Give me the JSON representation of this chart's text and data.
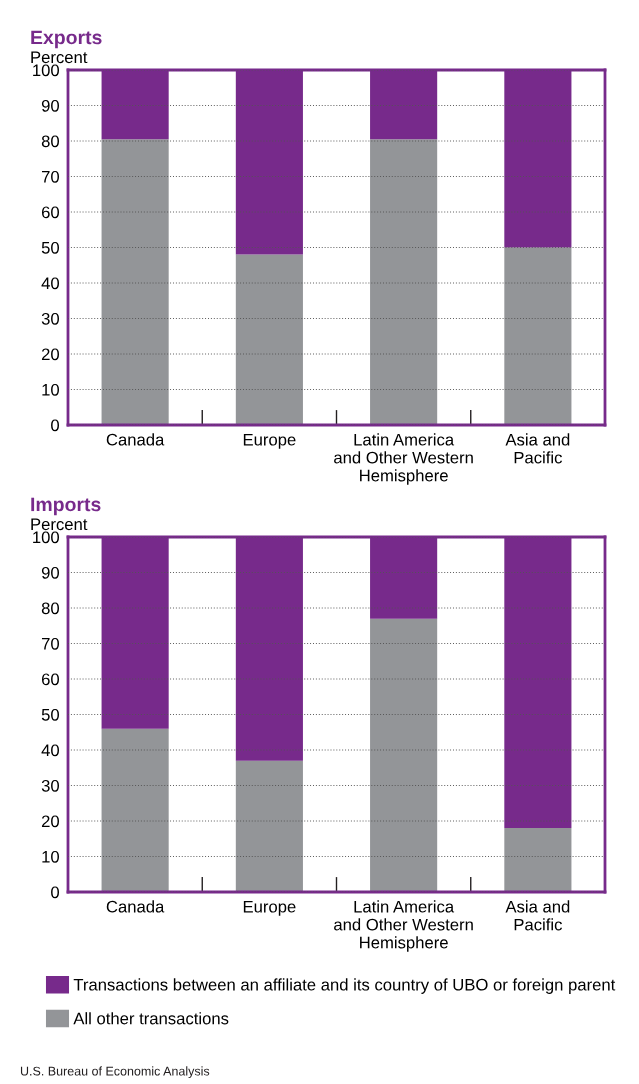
{
  "chart_data": [
    {
      "type": "bar",
      "stacked": true,
      "title": "Exports",
      "ylabel": "Percent",
      "categories": [
        "Canada",
        "Europe",
        "Latin America\nand Other Western\nHemisphere",
        "Asia and\nPacific"
      ],
      "ylim": [
        0,
        100
      ],
      "yticks": [
        0,
        10,
        20,
        30,
        40,
        50,
        60,
        70,
        80,
        90,
        100
      ],
      "grid": "y",
      "series": [
        {
          "color": "#939598",
          "values": [
            80.5,
            48,
            80.5,
            50
          ]
        },
        {
          "color": "#772a8b",
          "values": [
            19.5,
            52,
            19.5,
            50
          ]
        }
      ]
    },
    {
      "type": "bar",
      "stacked": true,
      "title": "Imports",
      "ylabel": "Percent",
      "categories": [
        "Canada",
        "Europe",
        "Latin America\nand Other Western\nHemisphere",
        "Asia and\nPacific"
      ],
      "ylim": [
        0,
        100
      ],
      "yticks": [
        0,
        10,
        20,
        30,
        40,
        50,
        60,
        70,
        80,
        90,
        100
      ],
      "grid": "y",
      "legend": "bottom",
      "annotations": [
        "U.S. Bureau of Economic Analysis"
      ],
      "series": [
        {
          "name": "All other transactions",
          "color": "#939598",
          "values": [
            46,
            37,
            77,
            18
          ]
        },
        {
          "name": "Transactions between an affiliate and its country of UBO or foreign parent",
          "color": "#772a8b",
          "values": [
            54,
            63,
            23,
            82
          ]
        }
      ]
    }
  ]
}
